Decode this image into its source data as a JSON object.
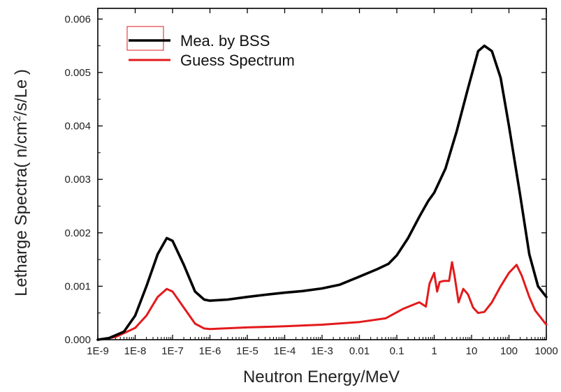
{
  "chart_data": {
    "type": "line",
    "xlabel": "Neutron Energy/MeV",
    "ylabel_prefix": "Letharge Spectra( n/cm",
    "ylabel_sup": "2",
    "ylabel_suffix": "/s/Le )",
    "x_scale": "log",
    "xlim": [
      1e-09,
      1000
    ],
    "ylim": [
      0,
      0.0062
    ],
    "grid": false,
    "legend_position": "top-left",
    "x_ticks": [
      {
        "value": 1e-09,
        "label": "1E-9"
      },
      {
        "value": 1e-08,
        "label": "1E-8"
      },
      {
        "value": 1e-07,
        "label": "1E-7"
      },
      {
        "value": 1e-06,
        "label": "1E-6"
      },
      {
        "value": 1e-05,
        "label": "1E-5"
      },
      {
        "value": 0.0001,
        "label": "1E-4"
      },
      {
        "value": 0.001,
        "label": "1E-3"
      },
      {
        "value": 0.01,
        "label": "0.01"
      },
      {
        "value": 0.1,
        "label": "0.1"
      },
      {
        "value": 1,
        "label": "1"
      },
      {
        "value": 10,
        "label": "10"
      },
      {
        "value": 100,
        "label": "100"
      },
      {
        "value": 1000,
        "label": "1000"
      }
    ],
    "y_ticks": [
      {
        "value": 0,
        "label": "0.000"
      },
      {
        "value": 0.001,
        "label": "0.001"
      },
      {
        "value": 0.002,
        "label": "0.002"
      },
      {
        "value": 0.003,
        "label": "0.003"
      },
      {
        "value": 0.004,
        "label": "0.004"
      },
      {
        "value": 0.005,
        "label": "0.005"
      },
      {
        "value": 0.006,
        "label": "0.006"
      }
    ],
    "series": [
      {
        "name": "Mea. by BSS",
        "color": "#000000",
        "points": [
          [
            1e-09,
            0.0
          ],
          [
            2e-09,
            3e-05
          ],
          [
            5e-09,
            0.00015
          ],
          [
            1e-08,
            0.00045
          ],
          [
            2e-08,
            0.001
          ],
          [
            4e-08,
            0.0016
          ],
          [
            7e-08,
            0.0019
          ],
          [
            1e-07,
            0.00185
          ],
          [
            2e-07,
            0.0014
          ],
          [
            4e-07,
            0.0009
          ],
          [
            7e-07,
            0.00075
          ],
          [
            1e-06,
            0.00073
          ],
          [
            3e-06,
            0.00075
          ],
          [
            1e-05,
            0.0008
          ],
          [
            3e-05,
            0.00084
          ],
          [
            0.0001,
            0.00088
          ],
          [
            0.0003,
            0.00091
          ],
          [
            0.001,
            0.00096
          ],
          [
            0.003,
            0.00103
          ],
          [
            0.01,
            0.00118
          ],
          [
            0.03,
            0.00132
          ],
          [
            0.06,
            0.00142
          ],
          [
            0.1,
            0.00158
          ],
          [
            0.2,
            0.0019
          ],
          [
            0.4,
            0.0023
          ],
          [
            0.7,
            0.0026
          ],
          [
            1,
            0.00275
          ],
          [
            2,
            0.0032
          ],
          [
            4,
            0.0039
          ],
          [
            8,
            0.0047
          ],
          [
            15,
            0.0054
          ],
          [
            22,
            0.0055
          ],
          [
            35,
            0.0054
          ],
          [
            60,
            0.0049
          ],
          [
            100,
            0.004
          ],
          [
            200,
            0.0027
          ],
          [
            350,
            0.0016
          ],
          [
            600,
            0.001
          ],
          [
            1000,
            0.0008
          ]
        ]
      },
      {
        "name": "Guess Spectrum",
        "color": "#e31a1c",
        "points": [
          [
            1e-09,
            0.0
          ],
          [
            3e-09,
            5e-05
          ],
          [
            1e-08,
            0.00022
          ],
          [
            2e-08,
            0.00045
          ],
          [
            4e-08,
            0.0008
          ],
          [
            7e-08,
            0.00095
          ],
          [
            1e-07,
            0.0009
          ],
          [
            2e-07,
            0.0006
          ],
          [
            4e-07,
            0.0003
          ],
          [
            7e-07,
            0.00021
          ],
          [
            1e-06,
            0.0002
          ],
          [
            1e-05,
            0.00023
          ],
          [
            0.0001,
            0.00025
          ],
          [
            0.001,
            0.00028
          ],
          [
            0.01,
            0.00033
          ],
          [
            0.05,
            0.0004
          ],
          [
            0.15,
            0.00058
          ],
          [
            0.4,
            0.0007
          ],
          [
            0.6,
            0.00062
          ],
          [
            0.75,
            0.00105
          ],
          [
            1,
            0.00125
          ],
          [
            1.2,
            0.0009
          ],
          [
            1.4,
            0.00108
          ],
          [
            1.8,
            0.0011
          ],
          [
            2.5,
            0.0011
          ],
          [
            3,
            0.00145
          ],
          [
            3.5,
            0.0012
          ],
          [
            4.5,
            0.0007
          ],
          [
            6,
            0.00095
          ],
          [
            8,
            0.00085
          ],
          [
            11,
            0.0006
          ],
          [
            15,
            0.0005
          ],
          [
            22,
            0.00052
          ],
          [
            35,
            0.0007
          ],
          [
            60,
            0.001
          ],
          [
            100,
            0.00125
          ],
          [
            160,
            0.0014
          ],
          [
            220,
            0.0012
          ],
          [
            350,
            0.0008
          ],
          [
            500,
            0.00055
          ],
          [
            1000,
            0.00028
          ]
        ]
      }
    ]
  }
}
